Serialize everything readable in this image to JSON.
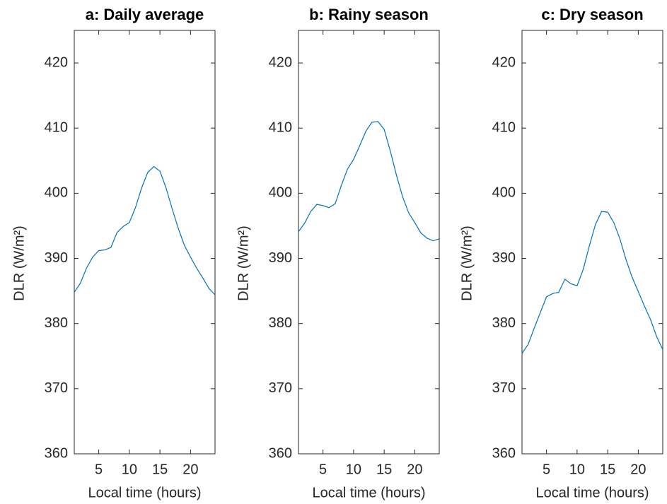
{
  "chart_data": [
    {
      "type": "line",
      "title": "a: Daily average",
      "xlabel": "Local time (hours)",
      "ylabel": "DLR (W/m²)",
      "x": [
        1,
        2,
        3,
        4,
        5,
        6,
        7,
        8,
        9,
        10,
        11,
        12,
        13,
        14,
        15,
        16,
        17,
        18,
        19,
        20,
        21,
        22,
        23,
        24
      ],
      "values": [
        384.8,
        386.2,
        388.5,
        390.2,
        391.2,
        391.3,
        391.7,
        394.0,
        394.9,
        395.5,
        397.8,
        400.8,
        403.2,
        404.1,
        403.4,
        400.8,
        397.6,
        394.6,
        392.0,
        390.2,
        388.5,
        387.0,
        385.4,
        384.4
      ],
      "color": "#0072bd",
      "xlim": [
        1,
        24
      ],
      "ylim": [
        360,
        425
      ],
      "xticks": [
        5,
        10,
        15,
        20
      ],
      "yticks": [
        360,
        370,
        380,
        390,
        400,
        410,
        420
      ]
    },
    {
      "type": "line",
      "title": "b: Rainy season",
      "xlabel": "Local time (hours)",
      "ylabel": "DLR (W/m²)",
      "x": [
        1,
        2,
        3,
        4,
        5,
        6,
        7,
        8,
        9,
        10,
        11,
        12,
        13,
        14,
        15,
        16,
        17,
        18,
        19,
        20,
        21,
        22,
        23,
        24
      ],
      "values": [
        394.1,
        395.4,
        397.2,
        398.3,
        398.1,
        397.8,
        398.4,
        401.2,
        403.7,
        405.2,
        407.3,
        409.5,
        410.9,
        411.0,
        409.8,
        406.5,
        402.8,
        399.5,
        397.0,
        395.5,
        393.9,
        393.1,
        392.7,
        393.0
      ],
      "color": "#0072bd",
      "xlim": [
        1,
        24
      ],
      "ylim": [
        360,
        425
      ],
      "xticks": [
        5,
        10,
        15,
        20
      ],
      "yticks": [
        360,
        370,
        380,
        390,
        400,
        410,
        420
      ]
    },
    {
      "type": "line",
      "title": "c: Dry season",
      "xlabel": "Local time (hours)",
      "ylabel": "DLR (W/m²)",
      "x": [
        1,
        2,
        3,
        4,
        5,
        6,
        7,
        8,
        9,
        10,
        11,
        12,
        13,
        14,
        15,
        16,
        17,
        18,
        19,
        20,
        21,
        22,
        23,
        24
      ],
      "values": [
        375.4,
        376.8,
        379.3,
        381.7,
        384.1,
        384.6,
        384.8,
        386.8,
        386.1,
        385.8,
        388.3,
        391.9,
        395.2,
        397.2,
        397.1,
        395.5,
        393.0,
        389.8,
        387.1,
        384.9,
        382.7,
        380.6,
        378.0,
        376.0
      ],
      "color": "#0072bd",
      "xlim": [
        1,
        24
      ],
      "ylim": [
        360,
        425
      ],
      "xticks": [
        5,
        10,
        15,
        20
      ],
      "yticks": [
        360,
        370,
        380,
        390,
        400,
        410,
        420
      ]
    }
  ]
}
